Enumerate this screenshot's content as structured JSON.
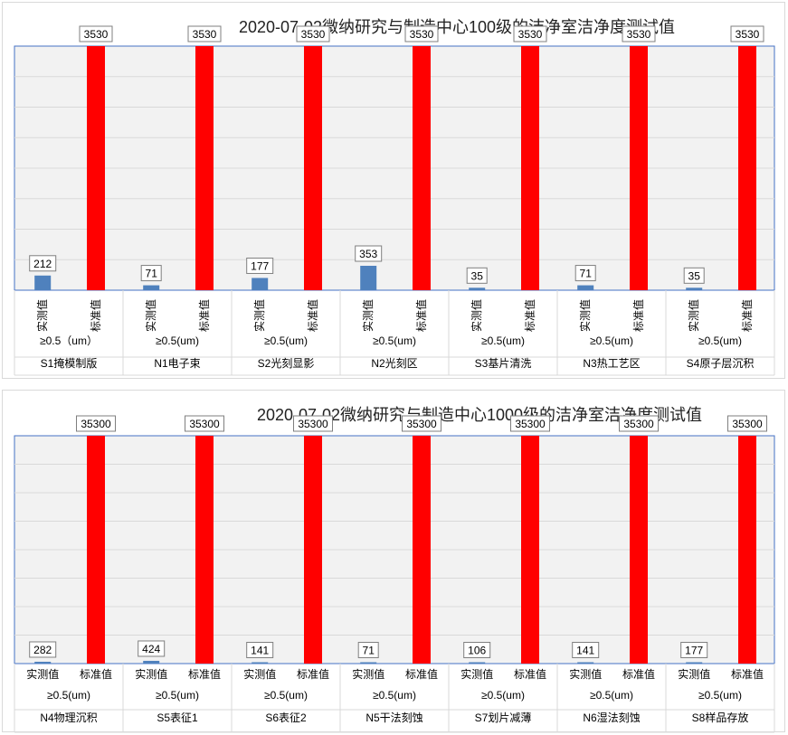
{
  "chart_data": [
    {
      "type": "bar",
      "title": "2020-07-02微纳研究与制造中心100级的洁净室洁净度测试值",
      "series_labels": [
        "实测值",
        "标准值"
      ],
      "colors": {
        "measured": "#4f81bd",
        "standard": "#ff0000"
      },
      "ylim": [
        0,
        3530
      ],
      "grid": true,
      "groups": [
        {
          "particle": "≥0.5（um）",
          "room": "S1掩模制版",
          "measured": 212,
          "standard": 3530
        },
        {
          "particle": "≥0.5(um)",
          "room": "N1电子束",
          "measured": 71,
          "standard": 3530
        },
        {
          "particle": "≥0.5(um)",
          "room": "S2光刻显影",
          "measured": 177,
          "standard": 3530
        },
        {
          "particle": "≥0.5(um)",
          "room": "N2光刻区",
          "measured": 353,
          "standard": 3530
        },
        {
          "particle": "≥0.5(um)",
          "room": "S3基片清洗",
          "measured": 35,
          "standard": 3530
        },
        {
          "particle": "≥0.5(um)",
          "room": "N3热工艺区",
          "measured": 71,
          "standard": 3530
        },
        {
          "particle": "≥0.5(um)",
          "room": "S4原子层沉积",
          "measured": 35,
          "standard": 3530
        }
      ]
    },
    {
      "type": "bar",
      "title": "2020-07-02微纳研究与制造中心1000级的洁净室洁净度测试值",
      "series_labels": [
        "实测值",
        "标准值"
      ],
      "colors": {
        "measured": "#4f81bd",
        "standard": "#ff0000"
      },
      "ylim": [
        0,
        35300
      ],
      "grid": true,
      "groups": [
        {
          "particle": "≥0.5(um)",
          "room": "N4物理沉积",
          "measured": 282,
          "standard": 35300
        },
        {
          "particle": "≥0.5(um)",
          "room": "S5表征1",
          "measured": 424,
          "standard": 35300
        },
        {
          "particle": "≥0.5(um)",
          "room": "S6表征2",
          "measured": 141,
          "standard": 35300
        },
        {
          "particle": "≥0.5(um)",
          "room": "N5干法刻蚀",
          "measured": 71,
          "standard": 35300
        },
        {
          "particle": "≥0.5(um)",
          "room": "S7划片减薄",
          "measured": 106,
          "standard": 35300
        },
        {
          "particle": "≥0.5(um)",
          "room": "N6湿法刻蚀",
          "measured": 141,
          "standard": 35300
        },
        {
          "particle": "≥0.5(um)",
          "room": "S8样品存放",
          "measured": 177,
          "standard": 35300
        }
      ]
    }
  ]
}
